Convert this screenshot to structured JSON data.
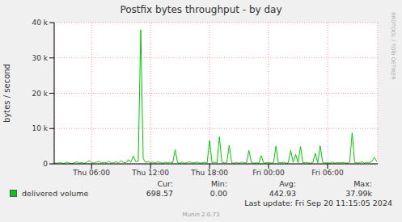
{
  "chart_data": {
    "type": "line",
    "title": "Postfix bytes throughput - by day",
    "y_label": "bytes / second",
    "watermark": "RRDTOOL / TOBI OETIKER",
    "last_update": "Last update: Fri Sep 20 11:15:05 2024",
    "footer": "Munin 2.0.73",
    "legend": "bottom",
    "grid": true,
    "xlim": [
      2.2,
      35.1
    ],
    "xticks": [
      {
        "value": 6,
        "label": "Thu 06:00"
      },
      {
        "value": 12,
        "label": "Thu 12:00"
      },
      {
        "value": 18,
        "label": "Thu 18:00"
      },
      {
        "value": 24,
        "label": "Fri 00:00"
      },
      {
        "value": 30,
        "label": "Fri 06:00"
      }
    ],
    "ylim": [
      0,
      40000
    ],
    "yticks": [
      0,
      {
        "value": 10000,
        "label": "10 k"
      },
      {
        "value": 20000,
        "label": "20 k"
      },
      {
        "value": 30000,
        "label": "30 k"
      },
      {
        "value": 40000,
        "label": "40 k"
      }
    ],
    "x": [
      2.25,
      2.5,
      2.75,
      3,
      3.25,
      3.5,
      3.75,
      4,
      4.25,
      4.5,
      4.75,
      5,
      5.25,
      5.5,
      5.75,
      6,
      6.25,
      6.5,
      6.75,
      7,
      7.25,
      7.5,
      7.75,
      8,
      8.25,
      8.5,
      8.75,
      9,
      9.25,
      9.5,
      9.75,
      10,
      10.25,
      10.5,
      10.75,
      11,
      11.25,
      11.5,
      11.75,
      12,
      12.25,
      12.5,
      12.75,
      13,
      13.25,
      13.5,
      13.75,
      14,
      14.25,
      14.5,
      14.75,
      15,
      15.25,
      15.5,
      15.75,
      16,
      16.25,
      16.5,
      16.75,
      17,
      17.25,
      17.5,
      17.75,
      18,
      18.25,
      18.5,
      18.75,
      19,
      19.25,
      19.5,
      19.75,
      20,
      20.25,
      20.5,
      20.75,
      21,
      21.25,
      21.5,
      21.75,
      22,
      22.25,
      22.5,
      22.75,
      23,
      23.25,
      23.5,
      23.75,
      24,
      24.25,
      24.5,
      24.75,
      25,
      25.25,
      25.5,
      25.75,
      26,
      26.25,
      26.5,
      26.75,
      27,
      27.25,
      27.5,
      27.75,
      28,
      28.25,
      28.5,
      28.75,
      29,
      29.25,
      29.5,
      29.75,
      30,
      30.25,
      30.5,
      30.75,
      31,
      31.25,
      31.5,
      31.75,
      32,
      32.25,
      32.5,
      32.75,
      33,
      33.25,
      33.5,
      33.75,
      34,
      34.25,
      34.5,
      34.75,
      35
    ],
    "series": [
      {
        "name": "delivered volume",
        "color": "#00cc00",
        "values": [
          300,
          150,
          400,
          200,
          100,
          500,
          250,
          0,
          300,
          600,
          200,
          350,
          150,
          400,
          1000,
          300,
          200,
          500,
          700,
          250,
          400,
          300,
          800,
          200,
          350,
          600,
          250,
          900,
          400,
          300,
          1200,
          500,
          2200,
          600,
          800,
          37990,
          1500,
          400,
          700,
          300,
          500,
          250,
          600,
          350,
          200,
          450,
          300,
          500,
          250,
          4000,
          300,
          200,
          500,
          150,
          400,
          600,
          250,
          350,
          500,
          200,
          300,
          450,
          250,
          6600,
          300,
          500,
          200,
          7700,
          400,
          250,
          350,
          5300,
          300,
          200,
          400,
          150,
          500,
          300,
          250,
          3800,
          400,
          200,
          300,
          150,
          2300,
          300,
          250,
          400,
          200,
          350,
          5000,
          300,
          250,
          450,
          200,
          300,
          3800,
          400,
          2700,
          300,
          4900,
          250,
          400,
          300,
          200,
          350,
          3000,
          300,
          5100,
          400,
          250,
          300,
          200,
          500,
          150,
          350,
          250,
          400,
          300,
          200,
          500,
          8800,
          400,
          250,
          300,
          600,
          200,
          450,
          350,
          700,
          1800,
          698.57
        ]
      }
    ],
    "legend_stats": [
      {
        "name": "Cur:",
        "value": 698.57,
        "label": "698.57"
      },
      {
        "name": "Min:",
        "value": 0,
        "label": "0.00"
      },
      {
        "name": "Avg:",
        "value": 442.93,
        "label": "442.93"
      },
      {
        "name": "Max:",
        "value": 37990,
        "label": "37.99k"
      }
    ]
  }
}
